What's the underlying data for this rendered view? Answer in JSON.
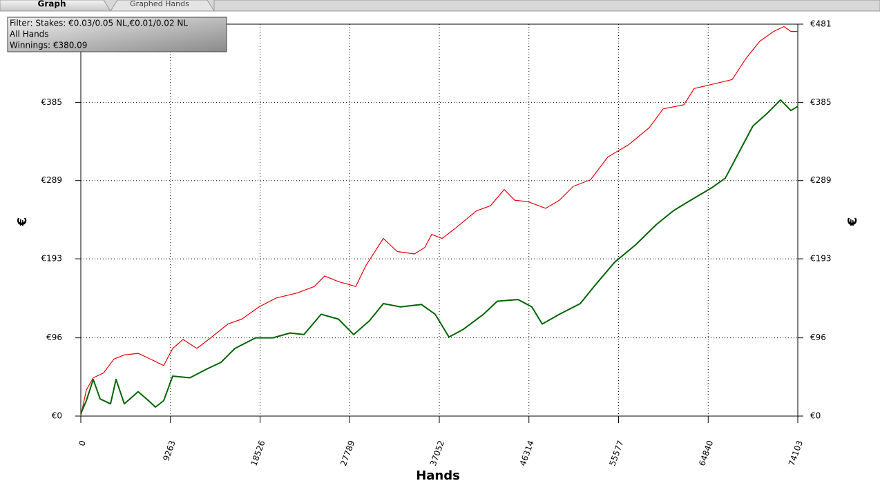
{
  "tabs": [
    "Graph",
    "Graphed Hands"
  ],
  "chart_data": {
    "type": "line",
    "annotations": [
      "Filter: Stakes: €0.03/0.05 NL,€0.01/0.02 NL",
      "All Hands",
      "Winnings: €380.09"
    ],
    "xlabel": "Hands",
    "ylabel": "€",
    "xlim": [
      0,
      74103
    ],
    "xticks": [
      0,
      9263,
      18526,
      27789,
      37052,
      46314,
      55577,
      64840,
      74103
    ],
    "ylim": [
      0,
      481
    ],
    "yticks": [
      {
        "value": 0,
        "label": "€0"
      },
      {
        "value": 96,
        "label": "€96"
      },
      {
        "value": 193,
        "label": "€193"
      },
      {
        "value": 289,
        "label": "€289"
      },
      {
        "value": 385,
        "label": "€385"
      },
      {
        "value": 481,
        "label": "€481"
      }
    ],
    "grid": true,
    "series": [
      {
        "color": "#e8000b",
        "x": [
          0,
          571,
          1285,
          2356,
          3427,
          4498,
          5925,
          7353,
          8567,
          9495,
          10566,
          11994,
          13421,
          15206,
          16634,
          18419,
          20203,
          22345,
          24130,
          25201,
          26629,
          28413,
          29484,
          31269,
          32697,
          34481,
          35552,
          36266,
          37337,
          38765,
          40906,
          42334,
          43762,
          44833,
          46261,
          48046,
          49473,
          50901,
          52686,
          54471,
          56612,
          58754,
          60182,
          62323,
          63394,
          65179,
          67321,
          68748,
          70176,
          71604,
          72675,
          73389,
          74103
        ],
        "values": [
          0,
          32,
          47,
          53,
          70,
          75,
          77,
          69,
          62,
          83,
          94,
          83,
          96,
          113,
          119,
          134,
          145,
          151,
          159,
          172,
          165,
          159,
          185,
          218,
          202,
          199,
          207,
          223,
          218,
          231,
          252,
          258,
          278,
          265,
          263,
          255,
          265,
          282,
          290,
          318,
          333,
          354,
          377,
          382,
          402,
          407,
          413,
          439,
          460,
          472,
          478,
          472,
          472
        ]
      },
      {
        "color": "#006400",
        "x": [
          0,
          571,
          1285,
          1999,
          3070,
          3641,
          4498,
          5925,
          6996,
          7710,
          8567,
          9495,
          11280,
          13064,
          14492,
          15920,
          18062,
          19847,
          21631,
          23059,
          24844,
          26629,
          28199,
          29841,
          31269,
          33054,
          35195,
          36623,
          38051,
          39479,
          41620,
          43048,
          45190,
          46618,
          47689,
          49473,
          51615,
          53043,
          55185,
          57326,
          59473,
          61253,
          63037,
          65179,
          66607,
          68034,
          69462,
          70890,
          72318,
          73389,
          74103
        ],
        "values": [
          3,
          19,
          45,
          21,
          15,
          45,
          15,
          30,
          19,
          11,
          19,
          49,
          47,
          58,
          66,
          83,
          96,
          96,
          102,
          100,
          125,
          119,
          100,
          117,
          138,
          134,
          137,
          125,
          97,
          106,
          125,
          141,
          143,
          134,
          113,
          125,
          138,
          159,
          189,
          210,
          235,
          252,
          265,
          280,
          292,
          324,
          356,
          371,
          388,
          375,
          380.09
        ]
      }
    ]
  }
}
